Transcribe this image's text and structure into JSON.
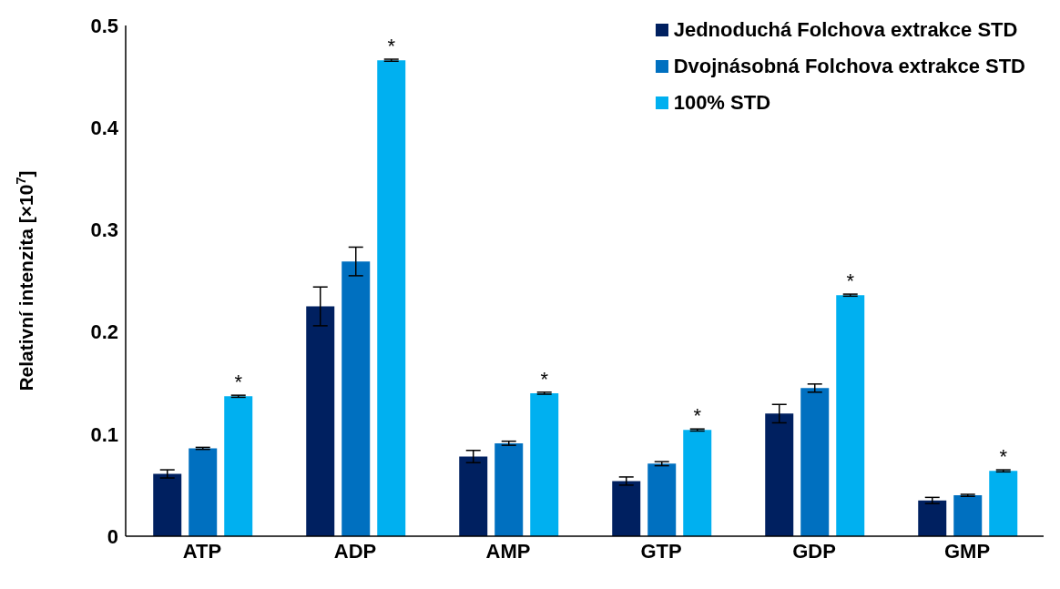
{
  "chart_data": {
    "type": "bar",
    "ylabel": "Relativní intenzita [×10$^{7}$]",
    "categories": [
      "ATP",
      "ADP",
      "AMP",
      "GTP",
      "GDP",
      "GMP"
    ],
    "series": [
      {
        "name": "Jednoduchá Folchova extrakce STD",
        "color": "#002060",
        "values": [
          0.061,
          0.225,
          0.078,
          0.054,
          0.12,
          0.035
        ],
        "errors": [
          0.004,
          0.019,
          0.006,
          0.004,
          0.009,
          0.003
        ]
      },
      {
        "name": "Dvojnásobná Folchova extrakce STD",
        "color": "#0070c0",
        "values": [
          0.086,
          0.269,
          0.091,
          0.071,
          0.145,
          0.04
        ],
        "errors": [
          0.001,
          0.014,
          0.002,
          0.002,
          0.004,
          0.001
        ]
      },
      {
        "name": "100% STD",
        "color": "#00b0f0",
        "values": [
          0.137,
          0.466,
          0.14,
          0.104,
          0.236,
          0.064
        ],
        "errors": [
          0.001,
          0.001,
          0.001,
          0.001,
          0.001,
          0.001
        ]
      }
    ],
    "annotations": [
      "*",
      "*",
      "*",
      "*",
      "*",
      "*"
    ],
    "ylim": [
      0,
      0.5
    ],
    "yticks": [
      0,
      0.1,
      0.2,
      0.3,
      0.4,
      0.5
    ],
    "grid": false,
    "legend": "top right"
  }
}
